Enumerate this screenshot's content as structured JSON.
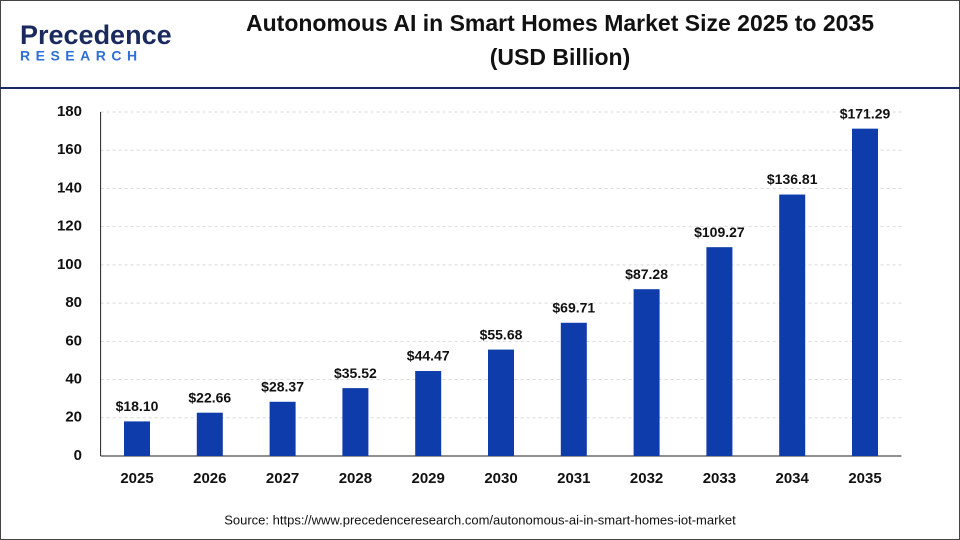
{
  "logo": {
    "name": "Precedence",
    "tagline": "RESEARCH"
  },
  "chart_data": {
    "type": "bar",
    "title": "Autonomous AI in Smart Homes Market Size 2025 to 2035",
    "subtitle": "(USD Billion)",
    "categories": [
      "2025",
      "2026",
      "2027",
      "2028",
      "2029",
      "2030",
      "2031",
      "2032",
      "2033",
      "2034",
      "2035"
    ],
    "values": [
      18.1,
      22.66,
      28.37,
      35.52,
      44.47,
      55.68,
      69.71,
      87.28,
      109.27,
      136.81,
      171.29
    ],
    "value_labels": [
      "$18.10",
      "$22.66",
      "$28.37",
      "$35.52",
      "$44.47",
      "$55.68",
      "$69.71",
      "$87.28",
      "$109.27",
      "$136.81",
      "$171.29"
    ],
    "color": "#0f3cab",
    "ylim": [
      0,
      180
    ],
    "yticks": [
      0,
      20,
      40,
      60,
      80,
      100,
      120,
      140,
      160,
      180
    ],
    "grid": true,
    "source": "Source: https://www.precedenceresearch.com/autonomous-ai-in-smart-homes-iot-market"
  }
}
